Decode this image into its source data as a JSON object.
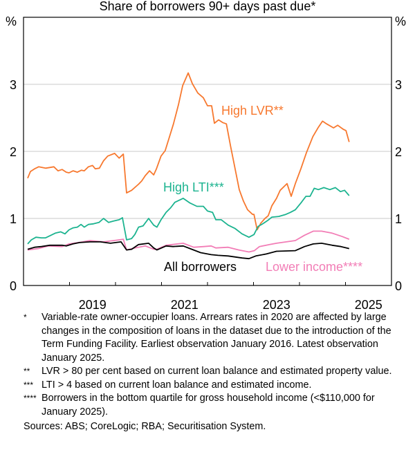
{
  "chart_data": {
    "type": "line",
    "title": "Share of borrowers 90+ days past due*",
    "xlabel": "",
    "ylabel": "%",
    "ylabel_right": "%",
    "xlim": [
      2018,
      2026
    ],
    "ylim": [
      0,
      4
    ],
    "y_ticks": [
      0,
      1,
      2,
      3
    ],
    "x_tick_labels": [
      {
        "label": "2019",
        "at": 2019.5
      },
      {
        "label": "2021",
        "at": 2021.5
      },
      {
        "label": "2023",
        "at": 2023.5
      },
      {
        "label": "2025",
        "at": 2025.5
      }
    ],
    "x_minor_ticks": [
      2019,
      2020,
      2021,
      2022,
      2023,
      2024,
      2025
    ],
    "grid": true,
    "series": [
      {
        "name": "High LVR**",
        "color": "#F7782E",
        "points": [
          [
            2018.09,
            1.6
          ],
          [
            2018.15,
            1.7
          ],
          [
            2018.24,
            1.74
          ],
          [
            2018.33,
            1.77
          ],
          [
            2018.48,
            1.75
          ],
          [
            2018.57,
            1.76
          ],
          [
            2018.66,
            1.77
          ],
          [
            2018.75,
            1.71
          ],
          [
            2018.84,
            1.73
          ],
          [
            2018.93,
            1.69
          ],
          [
            2018.99,
            1.68
          ],
          [
            2019.08,
            1.71
          ],
          [
            2019.17,
            1.69
          ],
          [
            2019.26,
            1.72
          ],
          [
            2019.32,
            1.71
          ],
          [
            2019.41,
            1.77
          ],
          [
            2019.5,
            1.79
          ],
          [
            2019.56,
            1.74
          ],
          [
            2019.65,
            1.75
          ],
          [
            2019.74,
            1.86
          ],
          [
            2019.83,
            1.93
          ],
          [
            2019.98,
            1.97
          ],
          [
            2020.08,
            1.9
          ],
          [
            2020.17,
            1.96
          ],
          [
            2020.24,
            1.38
          ],
          [
            2020.35,
            1.42
          ],
          [
            2020.5,
            1.51
          ],
          [
            2020.57,
            1.56
          ],
          [
            2020.65,
            1.64
          ],
          [
            2020.74,
            1.71
          ],
          [
            2020.83,
            1.65
          ],
          [
            2020.89,
            1.74
          ],
          [
            2020.99,
            1.93
          ],
          [
            2021.08,
            2.01
          ],
          [
            2021.17,
            2.21
          ],
          [
            2021.26,
            2.41
          ],
          [
            2021.37,
            2.7
          ],
          [
            2021.46,
            2.98
          ],
          [
            2021.58,
            3.17
          ],
          [
            2021.67,
            3.01
          ],
          [
            2021.79,
            2.87
          ],
          [
            2021.91,
            2.8
          ],
          [
            2022.0,
            2.68
          ],
          [
            2022.09,
            2.68
          ],
          [
            2022.15,
            2.42
          ],
          [
            2022.24,
            2.47
          ],
          [
            2022.33,
            2.43
          ],
          [
            2022.41,
            2.41
          ],
          [
            2022.5,
            2.08
          ],
          [
            2022.6,
            1.74
          ],
          [
            2022.69,
            1.43
          ],
          [
            2022.78,
            1.26
          ],
          [
            2022.87,
            1.13
          ],
          [
            2022.98,
            1.06
          ],
          [
            2023.01,
            1.06
          ],
          [
            2023.08,
            0.83
          ],
          [
            2023.16,
            0.93
          ],
          [
            2023.25,
            1.0
          ],
          [
            2023.32,
            1.04
          ],
          [
            2023.4,
            1.19
          ],
          [
            2023.5,
            1.3
          ],
          [
            2023.58,
            1.42
          ],
          [
            2023.73,
            1.52
          ],
          [
            2023.82,
            1.33
          ],
          [
            2023.91,
            1.52
          ],
          [
            2024.03,
            1.74
          ],
          [
            2024.15,
            1.98
          ],
          [
            2024.29,
            2.22
          ],
          [
            2024.41,
            2.36
          ],
          [
            2024.5,
            2.45
          ],
          [
            2024.59,
            2.41
          ],
          [
            2024.74,
            2.35
          ],
          [
            2024.83,
            2.39
          ],
          [
            2024.95,
            2.33
          ],
          [
            2025.01,
            2.31
          ],
          [
            2025.08,
            2.14
          ]
        ]
      },
      {
        "name": "High LTI***",
        "color": "#1BB38F",
        "points": [
          [
            2018.09,
            0.62
          ],
          [
            2018.17,
            0.68
          ],
          [
            2018.27,
            0.72
          ],
          [
            2018.39,
            0.71
          ],
          [
            2018.48,
            0.71
          ],
          [
            2018.57,
            0.74
          ],
          [
            2018.69,
            0.78
          ],
          [
            2018.81,
            0.8
          ],
          [
            2018.9,
            0.77
          ],
          [
            2018.99,
            0.83
          ],
          [
            2019.08,
            0.86
          ],
          [
            2019.17,
            0.87
          ],
          [
            2019.25,
            0.91
          ],
          [
            2019.32,
            0.87
          ],
          [
            2019.41,
            0.91
          ],
          [
            2019.52,
            0.92
          ],
          [
            2019.64,
            0.94
          ],
          [
            2019.74,
            1.0
          ],
          [
            2019.85,
            0.94
          ],
          [
            2019.95,
            0.96
          ],
          [
            2020.08,
            0.98
          ],
          [
            2020.15,
            1.01
          ],
          [
            2020.24,
            0.68
          ],
          [
            2020.35,
            0.7
          ],
          [
            2020.42,
            0.76
          ],
          [
            2020.5,
            0.87
          ],
          [
            2020.6,
            0.89
          ],
          [
            2020.72,
            1.0
          ],
          [
            2020.83,
            0.9
          ],
          [
            2020.9,
            0.87
          ],
          [
            2020.99,
            0.98
          ],
          [
            2021.1,
            1.09
          ],
          [
            2021.2,
            1.16
          ],
          [
            2021.29,
            1.24
          ],
          [
            2021.47,
            1.3
          ],
          [
            2021.62,
            1.23
          ],
          [
            2021.77,
            1.18
          ],
          [
            2021.91,
            1.18
          ],
          [
            2022.0,
            1.11
          ],
          [
            2022.11,
            1.09
          ],
          [
            2022.18,
            0.98
          ],
          [
            2022.3,
            0.98
          ],
          [
            2022.45,
            0.9
          ],
          [
            2022.6,
            0.85
          ],
          [
            2022.75,
            0.77
          ],
          [
            2022.9,
            0.72
          ],
          [
            2023.01,
            0.76
          ],
          [
            2023.1,
            0.88
          ],
          [
            2023.2,
            0.92
          ],
          [
            2023.31,
            0.97
          ],
          [
            2023.4,
            1.02
          ],
          [
            2023.55,
            1.03
          ],
          [
            2023.7,
            1.06
          ],
          [
            2023.8,
            1.09
          ],
          [
            2023.91,
            1.13
          ],
          [
            2024.03,
            1.23
          ],
          [
            2024.14,
            1.33
          ],
          [
            2024.23,
            1.33
          ],
          [
            2024.32,
            1.45
          ],
          [
            2024.41,
            1.43
          ],
          [
            2024.53,
            1.46
          ],
          [
            2024.66,
            1.43
          ],
          [
            2024.78,
            1.46
          ],
          [
            2024.89,
            1.4
          ],
          [
            2024.98,
            1.42
          ],
          [
            2025.08,
            1.34
          ]
        ]
      },
      {
        "name": "Lower income****",
        "color": "#F27DB6",
        "points": [
          [
            2018.09,
            0.53
          ],
          [
            2018.32,
            0.55
          ],
          [
            2018.54,
            0.59
          ],
          [
            2018.84,
            0.58
          ],
          [
            2018.99,
            0.62
          ],
          [
            2019.29,
            0.65
          ],
          [
            2019.44,
            0.67
          ],
          [
            2019.74,
            0.65
          ],
          [
            2020.08,
            0.68
          ],
          [
            2020.17,
            0.69
          ],
          [
            2020.24,
            0.53
          ],
          [
            2020.42,
            0.56
          ],
          [
            2020.65,
            0.59
          ],
          [
            2020.83,
            0.54
          ],
          [
            2020.9,
            0.54
          ],
          [
            2021.1,
            0.6
          ],
          [
            2021.47,
            0.63
          ],
          [
            2021.7,
            0.57
          ],
          [
            2021.92,
            0.58
          ],
          [
            2022.08,
            0.59
          ],
          [
            2022.18,
            0.56
          ],
          [
            2022.45,
            0.57
          ],
          [
            2022.68,
            0.53
          ],
          [
            2022.9,
            0.5
          ],
          [
            2023.02,
            0.52
          ],
          [
            2023.13,
            0.58
          ],
          [
            2023.35,
            0.61
          ],
          [
            2023.5,
            0.63
          ],
          [
            2023.91,
            0.67
          ],
          [
            2024.11,
            0.75
          ],
          [
            2024.3,
            0.81
          ],
          [
            2024.48,
            0.81
          ],
          [
            2024.71,
            0.78
          ],
          [
            2024.93,
            0.73
          ],
          [
            2025.08,
            0.69
          ]
        ]
      },
      {
        "name": "All borrowers",
        "color": "#000000",
        "points": [
          [
            2018.09,
            0.54
          ],
          [
            2018.24,
            0.57
          ],
          [
            2018.39,
            0.58
          ],
          [
            2018.57,
            0.6
          ],
          [
            2018.84,
            0.6
          ],
          [
            2018.93,
            0.59
          ],
          [
            2019.07,
            0.62
          ],
          [
            2019.22,
            0.64
          ],
          [
            2019.44,
            0.65
          ],
          [
            2019.67,
            0.65
          ],
          [
            2019.89,
            0.63
          ],
          [
            2020.12,
            0.65
          ],
          [
            2020.24,
            0.53
          ],
          [
            2020.35,
            0.54
          ],
          [
            2020.5,
            0.61
          ],
          [
            2020.72,
            0.63
          ],
          [
            2020.83,
            0.56
          ],
          [
            2020.9,
            0.53
          ],
          [
            2021.1,
            0.59
          ],
          [
            2021.25,
            0.58
          ],
          [
            2021.47,
            0.59
          ],
          [
            2021.62,
            0.55
          ],
          [
            2021.85,
            0.49
          ],
          [
            2022.08,
            0.46
          ],
          [
            2022.23,
            0.45
          ],
          [
            2022.45,
            0.44
          ],
          [
            2022.75,
            0.41
          ],
          [
            2022.9,
            0.4
          ],
          [
            2023.05,
            0.44
          ],
          [
            2023.28,
            0.47
          ],
          [
            2023.5,
            0.51
          ],
          [
            2023.91,
            0.52
          ],
          [
            2024.11,
            0.58
          ],
          [
            2024.3,
            0.62
          ],
          [
            2024.48,
            0.63
          ],
          [
            2024.71,
            0.6
          ],
          [
            2024.9,
            0.58
          ],
          [
            2025.08,
            0.55
          ]
        ]
      }
    ],
    "annotations": [
      {
        "text": "High LVR**",
        "series": "High LVR**"
      },
      {
        "text": "High LTI***",
        "series": "High LTI***"
      },
      {
        "text": "All borrowers",
        "series": "All borrowers"
      },
      {
        "text": "Lower income****",
        "series": "Lower income****"
      }
    ]
  },
  "notes": [
    {
      "mark": "*",
      "text": "Variable-rate owner-occupier loans. Arrears rates in 2020 are affected by large changes in the composition of loans in the dataset due to the introduction of the Term Funding Facility. Earliest observation January 2016. Latest observation January 2025."
    },
    {
      "mark": "**",
      "text": "LVR > 80 per cent based on current loan balance and estimated property value."
    },
    {
      "mark": "***",
      "text": "LTI > 4 based on current loan balance and estimated income."
    },
    {
      "mark": "****",
      "text": "Borrowers in the bottom quartile for gross household income (<$110,000 for January 2025)."
    }
  ],
  "sources": "Sources: ABS; CoreLogic; RBA; Securitisation System."
}
